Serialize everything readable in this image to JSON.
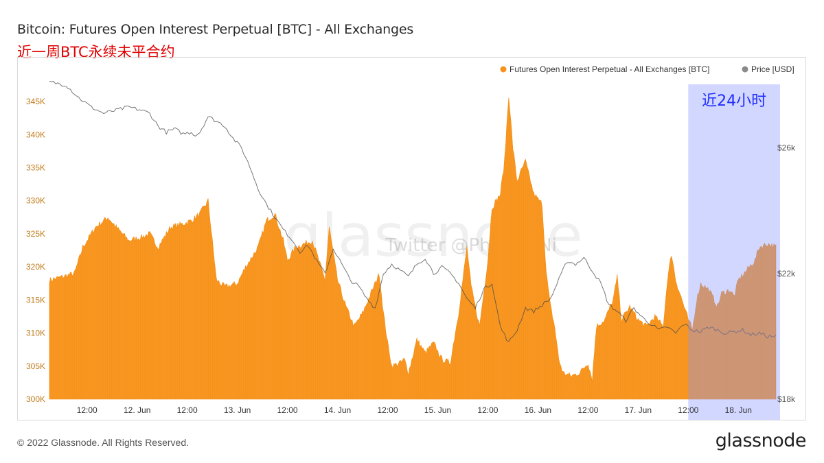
{
  "title": "Bitcoin: Futures Open Interest Perpetual [BTC] - All Exchanges",
  "subtitle": "近一周BTC永续未平合约",
  "highlight_label": "近24小时",
  "watermark": "glassnode",
  "watermark_twitter": "Twitter @Phyrex_Ni",
  "footer": {
    "copyright": "© 2022 Glassnode. All Rights Reserved.",
    "logo": "glassnode"
  },
  "colors": {
    "oi": "#f7931a",
    "price": "#8a8a8a",
    "highlight": "#c8cdff",
    "left_tick": "#c07a18"
  },
  "chart_data": {
    "type": "area",
    "legend_position": "top-right",
    "x_ticks": [
      "12:00",
      "12. Jun",
      "12:00",
      "13. Jun",
      "12:00",
      "14. Jun",
      "12:00",
      "15. Jun",
      "12:00",
      "16. Jun",
      "12:00",
      "17. Jun",
      "12:00",
      "18. Jun"
    ],
    "y_left_ticks": [
      "300K",
      "305K",
      "310K",
      "315K",
      "320K",
      "325K",
      "330K",
      "335K",
      "340K",
      "345K"
    ],
    "y_left_range": [
      300000,
      347500
    ],
    "y_right_ticks": [
      "$18k",
      "$22k",
      "$26k"
    ],
    "y_right_range": [
      18000,
      28000
    ],
    "x_hours_start": -9,
    "x_hours_end": 165,
    "highlight_hours": [
      144,
      165
    ],
    "series": [
      {
        "name": "Futures Open Interest Perpetual - All Exchanges [BTC]",
        "axis": "left",
        "points": [
          [
            -9,
            318000
          ],
          [
            -6,
            318500
          ],
          [
            -3,
            319000
          ],
          [
            -1,
            323000
          ],
          [
            2,
            326000
          ],
          [
            5,
            327500
          ],
          [
            7,
            326000
          ],
          [
            10,
            324000
          ],
          [
            13,
            324500
          ],
          [
            15,
            325000
          ],
          [
            17,
            323000
          ],
          [
            20,
            326000
          ],
          [
            23,
            326500
          ],
          [
            25,
            327000
          ],
          [
            27,
            328000
          ],
          [
            29,
            330000
          ],
          [
            31,
            318000
          ],
          [
            33,
            317000
          ],
          [
            36,
            317500
          ],
          [
            38,
            320000
          ],
          [
            41,
            323000
          ],
          [
            43,
            327000
          ],
          [
            45,
            328000
          ],
          [
            47,
            324000
          ],
          [
            48,
            321000
          ],
          [
            50,
            323000
          ],
          [
            52,
            323500
          ],
          [
            54,
            324000
          ],
          [
            55,
            322000
          ],
          [
            57,
            318000
          ],
          [
            58,
            326000
          ],
          [
            60,
            318000
          ],
          [
            62,
            314000
          ],
          [
            64,
            311000
          ],
          [
            66,
            313000
          ],
          [
            68,
            316000
          ],
          [
            70,
            319000
          ],
          [
            71,
            313000
          ],
          [
            72,
            308500
          ],
          [
            73,
            305000
          ],
          [
            75,
            305500
          ],
          [
            76,
            306000
          ],
          [
            77,
            304000
          ],
          [
            79,
            309000
          ],
          [
            81,
            307000
          ],
          [
            83,
            308500
          ],
          [
            85,
            306000
          ],
          [
            87,
            305500
          ],
          [
            89,
            313000
          ],
          [
            91,
            323000
          ],
          [
            92,
            317000
          ],
          [
            94,
            311000
          ],
          [
            96,
            321000
          ],
          [
            97,
            329000
          ],
          [
            99,
            331000
          ],
          [
            100,
            336000
          ],
          [
            101,
            346000
          ],
          [
            102,
            338000
          ],
          [
            103,
            333000
          ],
          [
            105,
            336000
          ],
          [
            107,
            331000
          ],
          [
            109,
            329500
          ],
          [
            110,
            319000
          ],
          [
            111,
            314000
          ],
          [
            112,
            311000
          ],
          [
            113,
            306000
          ],
          [
            114,
            304000
          ],
          [
            116,
            303500
          ],
          [
            118,
            304000
          ],
          [
            120,
            305500
          ],
          [
            121,
            303000
          ],
          [
            122,
            311000
          ],
          [
            124,
            312000
          ],
          [
            126,
            315000
          ],
          [
            127,
            318500
          ],
          [
            128,
            312000
          ],
          [
            130,
            314000
          ],
          [
            132,
            312000
          ],
          [
            134,
            311000
          ],
          [
            136,
            312500
          ],
          [
            138,
            311000
          ],
          [
            139,
            318000
          ],
          [
            140,
            322000
          ],
          [
            141,
            318000
          ],
          [
            143,
            314000
          ],
          [
            144,
            312000
          ],
          [
            145,
            310500
          ],
          [
            146,
            315000
          ],
          [
            147,
            317500
          ],
          [
            149,
            316500
          ],
          [
            151,
            314000
          ],
          [
            152,
            316000
          ],
          [
            154,
            316500
          ],
          [
            155,
            315500
          ],
          [
            156,
            318000
          ],
          [
            158,
            319500
          ],
          [
            160,
            321000
          ],
          [
            161,
            323000
          ],
          [
            163,
            323500
          ],
          [
            165,
            323000
          ]
        ]
      },
      {
        "name": "Price [USD]",
        "axis": "right",
        "points": [
          [
            -9,
            28100
          ],
          [
            -5,
            28000
          ],
          [
            -2,
            27600
          ],
          [
            1,
            27300
          ],
          [
            4,
            27100
          ],
          [
            7,
            27200
          ],
          [
            10,
            27300
          ],
          [
            13,
            27200
          ],
          [
            15,
            27100
          ],
          [
            17,
            26700
          ],
          [
            19,
            26500
          ],
          [
            21,
            26600
          ],
          [
            23,
            26450
          ],
          [
            25,
            26500
          ],
          [
            26,
            26400
          ],
          [
            27,
            26500
          ],
          [
            29,
            27000
          ],
          [
            31,
            26850
          ],
          [
            33,
            26700
          ],
          [
            35,
            26300
          ],
          [
            37,
            26000
          ],
          [
            39,
            25400
          ],
          [
            41,
            24700
          ],
          [
            43,
            24200
          ],
          [
            45,
            23800
          ],
          [
            47,
            23400
          ],
          [
            49,
            23100
          ],
          [
            51,
            22700
          ],
          [
            53,
            22900
          ],
          [
            55,
            22400
          ],
          [
            57,
            22000
          ],
          [
            59,
            22800
          ],
          [
            61,
            22300
          ],
          [
            63,
            21800
          ],
          [
            65,
            21600
          ],
          [
            67,
            21200
          ],
          [
            69,
            20900
          ],
          [
            71,
            22000
          ],
          [
            73,
            22300
          ],
          [
            75,
            22100
          ],
          [
            77,
            21900
          ],
          [
            79,
            22300
          ],
          [
            81,
            22500
          ],
          [
            83,
            22000
          ],
          [
            85,
            22200
          ],
          [
            87,
            22000
          ],
          [
            89,
            21700
          ],
          [
            91,
            21200
          ],
          [
            93,
            20900
          ],
          [
            95,
            21500
          ],
          [
            97,
            21700
          ],
          [
            99,
            20300
          ],
          [
            101,
            19800
          ],
          [
            103,
            20200
          ],
          [
            105,
            20900
          ],
          [
            107,
            20800
          ],
          [
            109,
            21000
          ],
          [
            111,
            21200
          ],
          [
            113,
            21800
          ],
          [
            115,
            22400
          ],
          [
            117,
            22300
          ],
          [
            119,
            22500
          ],
          [
            121,
            22100
          ],
          [
            123,
            21700
          ],
          [
            125,
            21000
          ],
          [
            127,
            20800
          ],
          [
            129,
            20500
          ],
          [
            131,
            20900
          ],
          [
            133,
            20600
          ],
          [
            135,
            20400
          ],
          [
            137,
            20200
          ],
          [
            139,
            20300
          ],
          [
            141,
            20100
          ],
          [
            143,
            20400
          ],
          [
            145,
            20200
          ],
          [
            147,
            20150
          ],
          [
            149,
            20300
          ],
          [
            151,
            20200
          ],
          [
            153,
            20100
          ],
          [
            155,
            20150
          ],
          [
            157,
            20200
          ],
          [
            159,
            20050
          ],
          [
            161,
            20100
          ],
          [
            163,
            20000
          ],
          [
            165,
            20000
          ]
        ]
      }
    ]
  }
}
